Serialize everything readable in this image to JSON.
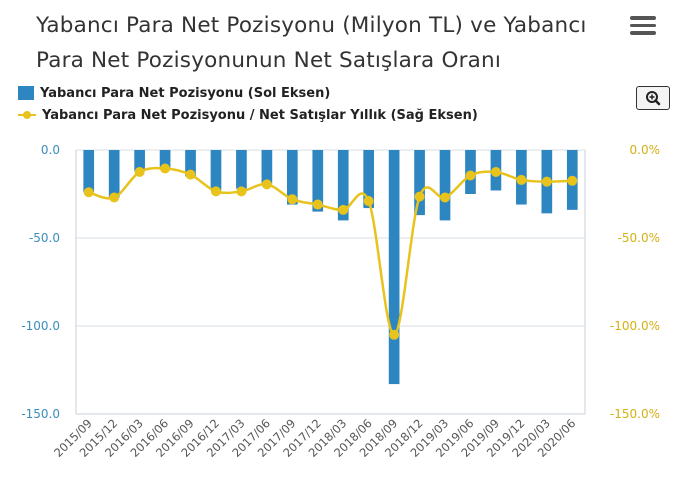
{
  "title": "Yabancı Para Net Pozisyonu (Milyon TL) ve Yabancı Para Net Pozisyonunun Net Satışlara Oranı",
  "icons": {
    "menu": "hamburger-menu-icon",
    "zoom": "zoom-magnifier-icon"
  },
  "colors": {
    "bar": "#2e86c1",
    "line": "#e8c31c",
    "left_axis": "#3a8fc0",
    "right_axis": "#d4b013",
    "grid": "#d8dfe6"
  },
  "chart_data": {
    "type": "bar",
    "categories": [
      "2015/09",
      "2015/12",
      "2016/03",
      "2016/06",
      "2016/09",
      "2016/12",
      "2017/03",
      "2017/06",
      "2017/09",
      "2017/12",
      "2018/03",
      "2018/06",
      "2018/09",
      "2018/12",
      "2019/03",
      "2019/06",
      "2019/09",
      "2019/12",
      "2020/03",
      "2020/06"
    ],
    "series": [
      {
        "name": "Yabancı Para Net Pozisyonu (Sol Eksen)",
        "type": "bar",
        "axis": "left",
        "values": [
          -24,
          -27,
          -12,
          -10,
          -15,
          -23,
          -22,
          -19,
          -31,
          -35,
          -40,
          -33,
          -133,
          -37,
          -40,
          -25,
          -23,
          -31,
          -36,
          -34
        ]
      },
      {
        "name": "Yabancı Para Net Pozisyonu / Net Satışlar Yıllık (Sağ Eksen)",
        "type": "line",
        "axis": "right",
        "values": [
          -24,
          -27,
          -12.5,
          -10.5,
          -14,
          -23.5,
          -23.5,
          -19.5,
          -28,
          -31,
          -34,
          -29,
          -105,
          -26.5,
          -27,
          -14.5,
          -12.5,
          -17,
          -18,
          -17.5
        ]
      }
    ],
    "left_axis": {
      "min": -150,
      "max": 0,
      "ticks": [
        0,
        -50,
        -100,
        -150
      ],
      "tick_labels": [
        "0.0",
        "-50.0",
        "-100.0",
        "-150.0"
      ]
    },
    "right_axis": {
      "min": -150,
      "max": 0,
      "ticks": [
        0,
        -50,
        -100,
        -150
      ],
      "tick_labels": [
        "0.0%",
        "-50.0%",
        "-100.0%",
        "-150.0%"
      ]
    },
    "grid": true,
    "legend_position": "top-left"
  }
}
